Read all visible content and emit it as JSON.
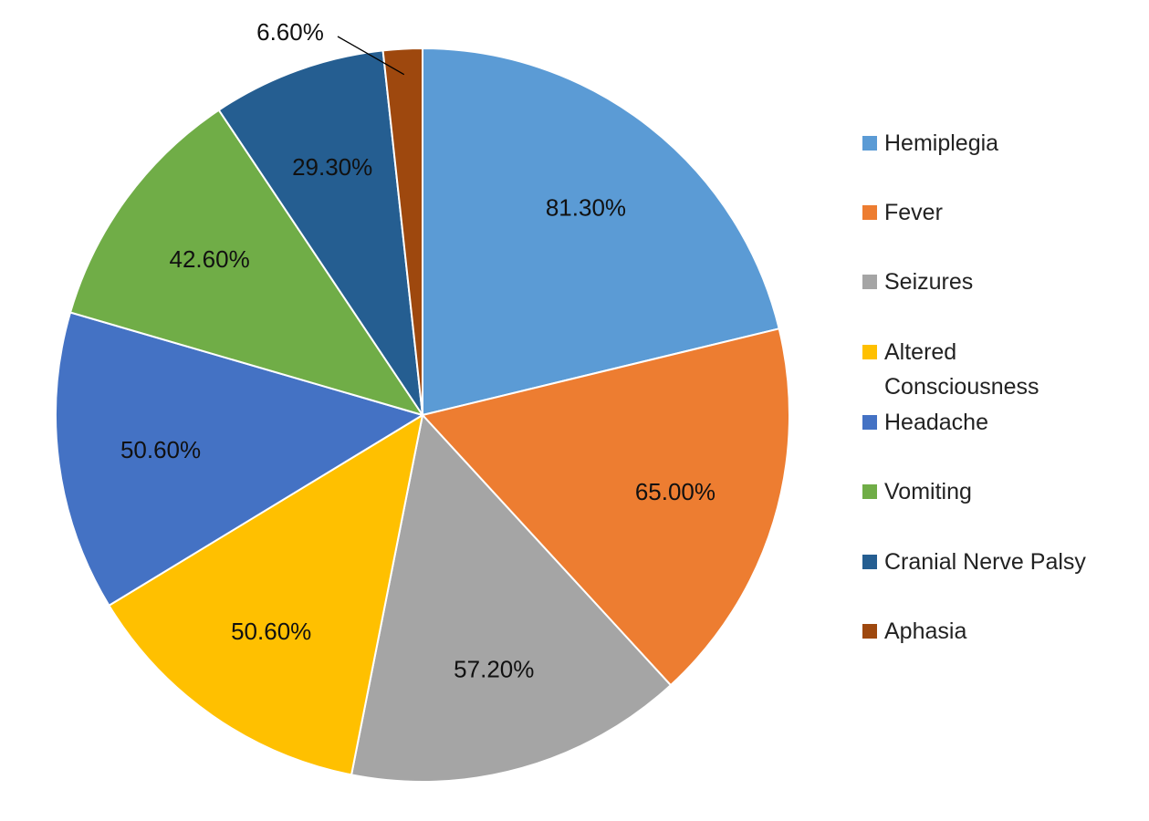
{
  "chart_data": {
    "type": "pie",
    "title": "",
    "categories": [
      "Hemiplegia",
      "Fever",
      "Seizures",
      "Altered Consciousness",
      "Headache",
      "Vomiting",
      "Cranial Nerve Palsy",
      "Aphasia"
    ],
    "values": [
      81.3,
      65.0,
      57.2,
      50.6,
      50.6,
      42.6,
      29.3,
      6.6
    ],
    "labels": [
      "81.30%",
      "65.00%",
      "57.20%",
      "50.60%",
      "50.60%",
      "42.60%",
      "29.30%",
      "6.60%"
    ],
    "colors": [
      "#5B9BD5",
      "#ED7D31",
      "#A5A5A5",
      "#FFC000",
      "#4472C4",
      "#70AD47",
      "#255E91",
      "#9E480E"
    ],
    "start": "top",
    "direction": "clockwise",
    "legend_position": "right"
  },
  "legend": {
    "items": [
      "Hemiplegia",
      "Fever",
      "Seizures",
      "Altered Consciousness",
      "Headache",
      "Vomiting",
      "Cranial Nerve Palsy",
      "Aphasia"
    ]
  }
}
